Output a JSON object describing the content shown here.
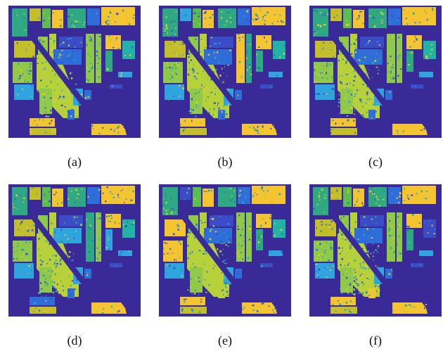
{
  "figure": {
    "panels": [
      {
        "caption": "(a)"
      },
      {
        "caption": "(b)"
      },
      {
        "caption": "(c)"
      },
      {
        "caption": "(d)"
      },
      {
        "caption": "(e)"
      },
      {
        "caption": "(f)"
      }
    ]
  },
  "colors": {
    "background": "#3a2a97",
    "yellow": "#f4c431",
    "yellow_green": "#b7d13a",
    "light_green": "#8ec94a",
    "green": "#5fbc4f",
    "teal_green": "#2fa982",
    "teal": "#23b3a5",
    "blue": "#2f6ed8",
    "light_blue": "#30a4de",
    "dark_blue": "#3b4cc7",
    "olive": "#c5be2b"
  }
}
